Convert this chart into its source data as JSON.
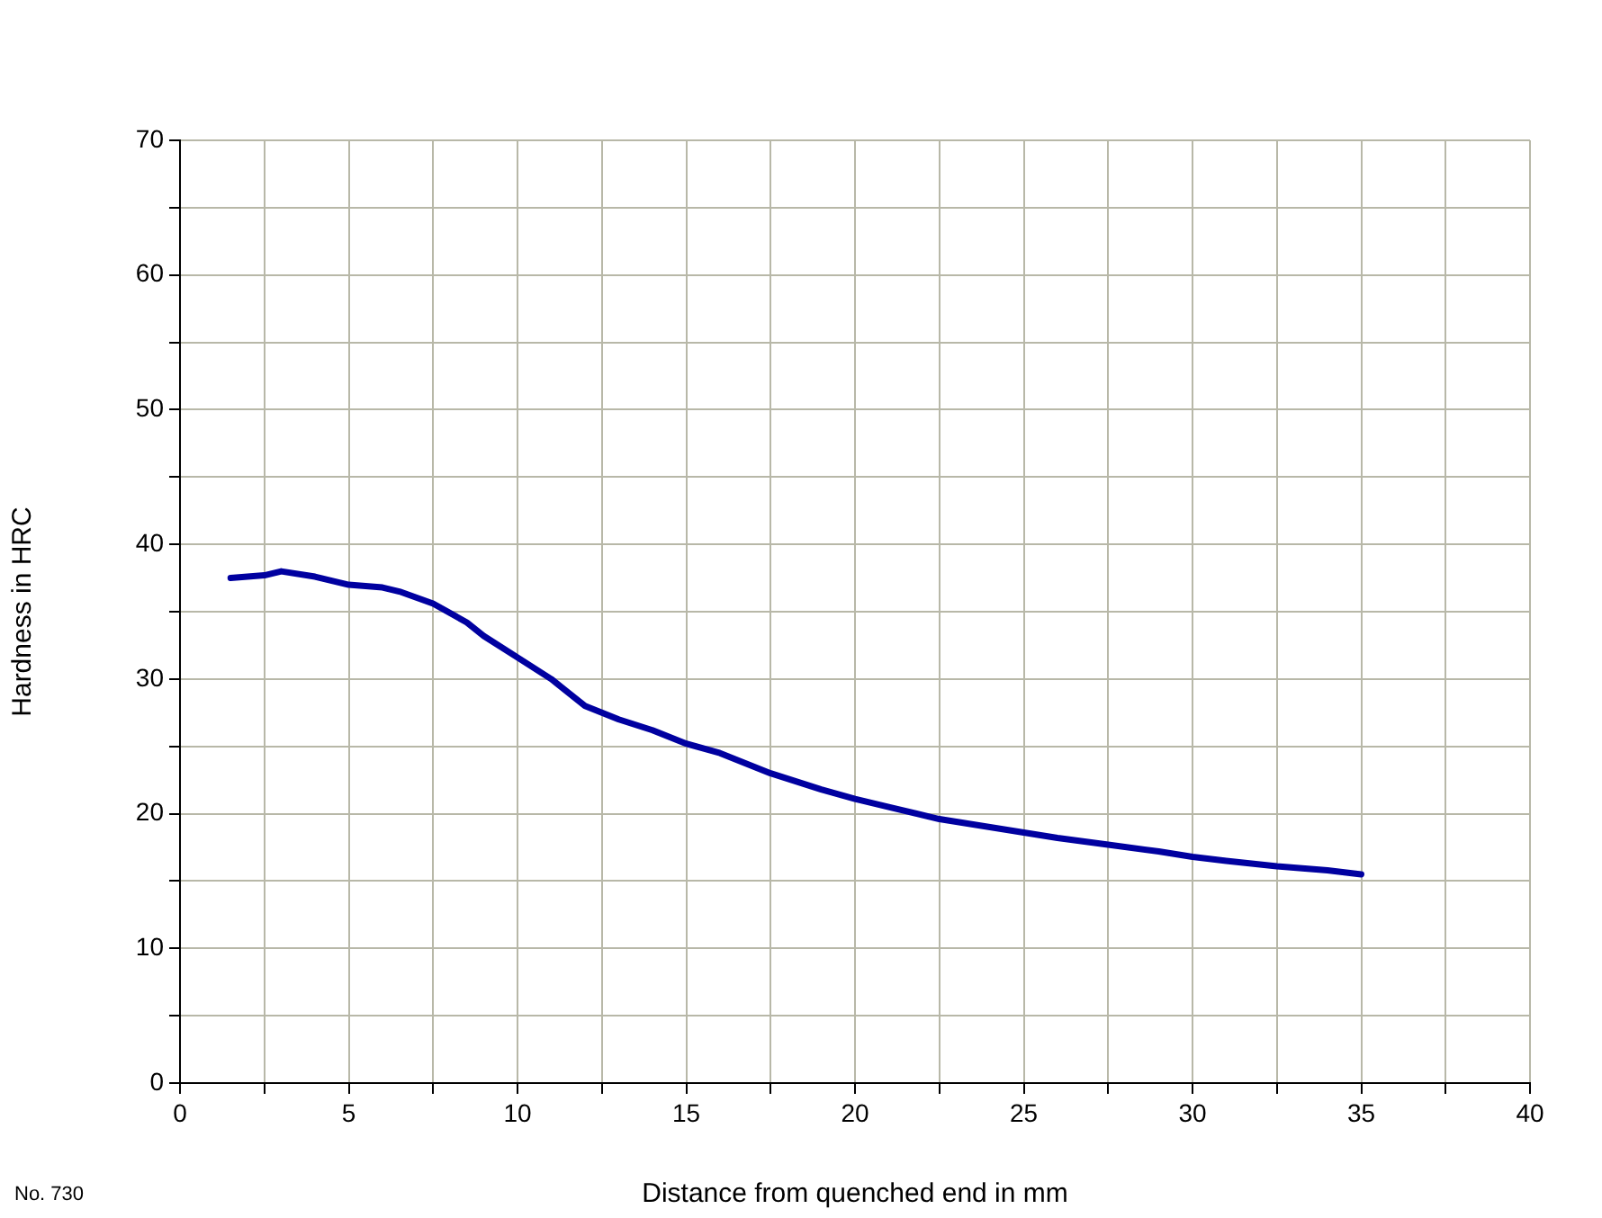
{
  "chart_data": {
    "type": "line",
    "xlabel": "Distance from quenched end in mm",
    "ylabel": "Hardness in HRC",
    "annotations": [
      "No. 730"
    ],
    "x": [
      1.5,
      2.5,
      3,
      4,
      5,
      6,
      6.5,
      7.5,
      8.5,
      9,
      10,
      11,
      12,
      13,
      14,
      15,
      16,
      17.5,
      19,
      20,
      21,
      22.5,
      24,
      25,
      26,
      27.5,
      29,
      30,
      31,
      32.5,
      34,
      35
    ],
    "series": [
      {
        "color": "#0000a0",
        "values": [
          37.5,
          37.7,
          38,
          37.6,
          37,
          36.8,
          36.5,
          35.6,
          34.2,
          33.2,
          31.6,
          30,
          28,
          27,
          26.2,
          25.2,
          24.5,
          23,
          21.8,
          21.1,
          20.5,
          19.6,
          19,
          18.6,
          18.2,
          17.7,
          17.2,
          16.8,
          16.5,
          16.1,
          15.8,
          15.5
        ]
      }
    ],
    "xlim": [
      0,
      40
    ],
    "ylim": [
      0,
      70
    ],
    "xticks": [
      0,
      {
        "value": 2.5,
        "label": null
      },
      5,
      {
        "value": 7.5,
        "label": null
      },
      10,
      {
        "value": 12.5,
        "label": null
      },
      15,
      {
        "value": 17.5,
        "label": null
      },
      20,
      {
        "value": 22.5,
        "label": null
      },
      25,
      {
        "value": 27.5,
        "label": null
      },
      30,
      {
        "value": 32.5,
        "label": null
      },
      35,
      {
        "value": 37.5,
        "label": null
      },
      40
    ],
    "yticks": [
      0,
      {
        "value": 5,
        "label": null
      },
      10,
      {
        "value": 15,
        "label": null
      },
      20,
      {
        "value": 25,
        "label": null
      },
      30,
      {
        "value": 35,
        "label": null
      },
      40,
      {
        "value": 45,
        "label": null
      },
      50,
      {
        "value": 55,
        "label": null
      },
      60,
      {
        "value": 65,
        "label": null
      },
      70
    ],
    "grid": true,
    "legend": false,
    "marker": "none",
    "line_style": "solid"
  }
}
